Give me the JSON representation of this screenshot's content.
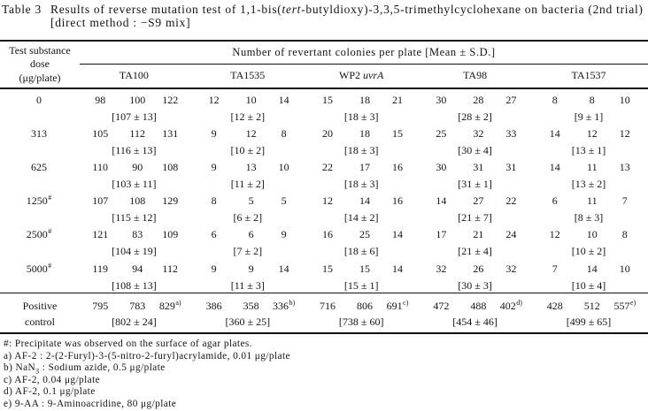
{
  "title": {
    "label": "Table 3",
    "line1_parts": [
      {
        "t": "Results of reverse mutation test of 1,1-bis("
      },
      {
        "t": "tert",
        "s": "i"
      },
      {
        "t": "-butyldioxy)-3,3,5-trimethylcyclohexane on bacteria (2nd trial)"
      }
    ],
    "line2": "[direct method : −S9 mix]"
  },
  "table": {
    "dose_header_lines": [
      "Test substance",
      "dose",
      "(μg/plate)"
    ],
    "span_header": "Number of revertant colonies per plate [Mean ± S.D.]",
    "strains": [
      [
        {
          "t": "TA100"
        }
      ],
      [
        {
          "t": "TA1535"
        }
      ],
      [
        {
          "t": "WP2 "
        },
        {
          "t": "uvrA",
          "s": "i"
        }
      ],
      [
        {
          "t": "TA98"
        }
      ],
      [
        {
          "t": "TA1537"
        }
      ]
    ],
    "rows": [
      {
        "dose": "0",
        "dose_sup": "",
        "counts": [
          [
            "98",
            "100",
            "122"
          ],
          [
            "12",
            "10",
            "14"
          ],
          [
            "15",
            "18",
            "21"
          ],
          [
            "30",
            "28",
            "27"
          ],
          [
            "8",
            "8",
            "10"
          ]
        ],
        "means": [
          "[107 ± 13]",
          "[12 ± 2]",
          "[18 ± 3]",
          "[28 ± 2]",
          "[9 ± 1]"
        ]
      },
      {
        "dose": "313",
        "dose_sup": "",
        "counts": [
          [
            "105",
            "112",
            "131"
          ],
          [
            "9",
            "12",
            "8"
          ],
          [
            "20",
            "18",
            "15"
          ],
          [
            "25",
            "32",
            "33"
          ],
          [
            "14",
            "12",
            "12"
          ]
        ],
        "means": [
          "[116 ± 13]",
          "[10 ± 2]",
          "[18 ± 3]",
          "[30 ± 4]",
          "[13 ± 1]"
        ]
      },
      {
        "dose": "625",
        "dose_sup": "",
        "counts": [
          [
            "110",
            "90",
            "108"
          ],
          [
            "9",
            "13",
            "10"
          ],
          [
            "22",
            "17",
            "16"
          ],
          [
            "30",
            "31",
            "31"
          ],
          [
            "14",
            "11",
            "13"
          ]
        ],
        "means": [
          "[103 ± 11]",
          "[11 ± 2]",
          "[18 ± 3]",
          "[31 ± 1]",
          "[13 ± 2]"
        ]
      },
      {
        "dose": "1250",
        "dose_sup": "#",
        "counts": [
          [
            "107",
            "108",
            "129"
          ],
          [
            "8",
            "5",
            "5"
          ],
          [
            "12",
            "14",
            "16"
          ],
          [
            "14",
            "27",
            "22"
          ],
          [
            "6",
            "11",
            "7"
          ]
        ],
        "means": [
          "[115 ± 12]",
          "[6 ± 2]",
          "[14 ± 2]",
          "[21 ± 7]",
          "[8 ± 3]"
        ]
      },
      {
        "dose": "2500",
        "dose_sup": "#",
        "counts": [
          [
            "121",
            "83",
            "109"
          ],
          [
            "6",
            "6",
            "9"
          ],
          [
            "16",
            "25",
            "14"
          ],
          [
            "17",
            "21",
            "24"
          ],
          [
            "12",
            "10",
            "8"
          ]
        ],
        "means": [
          "[104 ± 19]",
          "[7 ± 2]",
          "[18 ± 6]",
          "[21 ± 4]",
          "[10 ± 2]"
        ]
      },
      {
        "dose": "5000",
        "dose_sup": "#",
        "counts": [
          [
            "119",
            "94",
            "112"
          ],
          [
            "9",
            "9",
            "14"
          ],
          [
            "15",
            "15",
            "14"
          ],
          [
            "32",
            "26",
            "32"
          ],
          [
            "7",
            "14",
            "10"
          ]
        ],
        "means": [
          "[108 ± 13]",
          "[11 ± 3]",
          "[15 ± 1]",
          "[30 ± 3]",
          "[10 ± 4]"
        ]
      }
    ],
    "positive_control": {
      "label_lines": [
        "Positive",
        "control"
      ],
      "counts": [
        [
          "795",
          "783",
          "829"
        ],
        [
          "386",
          "358",
          "336"
        ],
        [
          "716",
          "806",
          "691"
        ],
        [
          "472",
          "488",
          "402"
        ],
        [
          "428",
          "512",
          "557"
        ]
      ],
      "count_sups": [
        "a)",
        "b)",
        "c)",
        "d)",
        "e)"
      ],
      "means": [
        "[802 ± 24]",
        "[360 ± 25]",
        "[738 ± 60]",
        "[454 ± 46]",
        "[499 ± 65]"
      ]
    }
  },
  "footnotes": [
    [
      {
        "t": "#: Precipitate was observed on the surface of agar plates."
      }
    ],
    [
      {
        "t": "a) AF-2 : 2-(2-Furyl)-3-(5-nitro-2-furyl)acrylamide, 0.01 μg/plate"
      }
    ],
    [
      {
        "t": "b) NaN"
      },
      {
        "t": "3",
        "s": "sub"
      },
      {
        "t": " : Sodium azide, 0.5 μg/plate"
      }
    ],
    [
      {
        "t": "c) AF-2, 0.04 μg/plate"
      }
    ],
    [
      {
        "t": "d) AF-2, 0.1 μg/plate"
      }
    ],
    [
      {
        "t": "e) 9-AA : 9-Aminoacridine, 80 μg/plate"
      }
    ]
  ]
}
